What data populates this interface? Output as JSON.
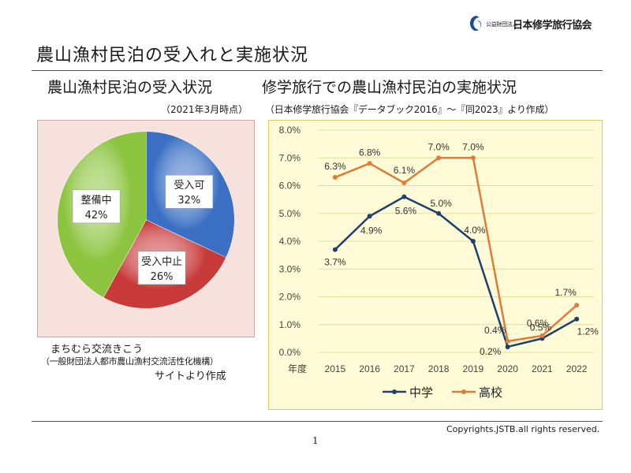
{
  "header": {
    "org_small": "公益財団法人",
    "org_name": "日本修学旅行協会",
    "title": "農山漁村民泊の受入れと実施状況"
  },
  "left": {
    "heading": "農山漁村民泊の受入状況",
    "date_note": "（2021年3月時点）",
    "source_line1": "まちむら交流きこう",
    "source_line2": "（一般財団法人都市農山漁村交流活性化機構）",
    "source_line3": "サイトより作成"
  },
  "right": {
    "heading": "修学旅行での農山漁村民泊の実施状況",
    "source_note": "（日本修学旅行協会『データブック2016』～『同2023』より作成）"
  },
  "footer": {
    "copyright": "Copyrights.JSTB.all rights reserved.",
    "page_number": "1"
  },
  "chart_data": [
    {
      "type": "pie",
      "slices": [
        {
          "label": "受入可",
          "value": 32,
          "value_label": "32%",
          "color": "#3a6fc4"
        },
        {
          "label": "受入中止",
          "value": 26,
          "value_label": "26%",
          "color": "#c83a3a"
        },
        {
          "label": "整備中",
          "value": 42,
          "value_label": "42%",
          "color": "#8cc43f"
        }
      ]
    },
    {
      "type": "line",
      "x_axis_title": "年度",
      "x": [
        "2015",
        "2016",
        "2017",
        "2018",
        "2019",
        "2020",
        "2021",
        "2022"
      ],
      "ylim": [
        0,
        8
      ],
      "y_ticks": [
        "0.0%",
        "1.0%",
        "2.0%",
        "3.0%",
        "4.0%",
        "5.0%",
        "6.0%",
        "7.0%",
        "8.0%"
      ],
      "grid": true,
      "legend_position": "bottom",
      "series": [
        {
          "name": "中学",
          "color": "#1f3f6e",
          "values": [
            3.7,
            4.9,
            5.6,
            5.0,
            4.0,
            0.2,
            0.5,
            1.2
          ],
          "labels": [
            "3.7%",
            "4.9%",
            "5.6%",
            "5.0%",
            "4.0%",
            "0.2%",
            "0.5%",
            "1.2%"
          ]
        },
        {
          "name": "高校",
          "color": "#e07b39",
          "values": [
            6.3,
            6.8,
            6.1,
            7.0,
            7.0,
            0.4,
            0.6,
            1.7
          ],
          "labels": [
            "6.3%",
            "6.8%",
            "6.1%",
            "7.0%",
            "7.0%",
            "0.4%",
            "0.6%",
            "1.7%"
          ]
        }
      ]
    }
  ]
}
